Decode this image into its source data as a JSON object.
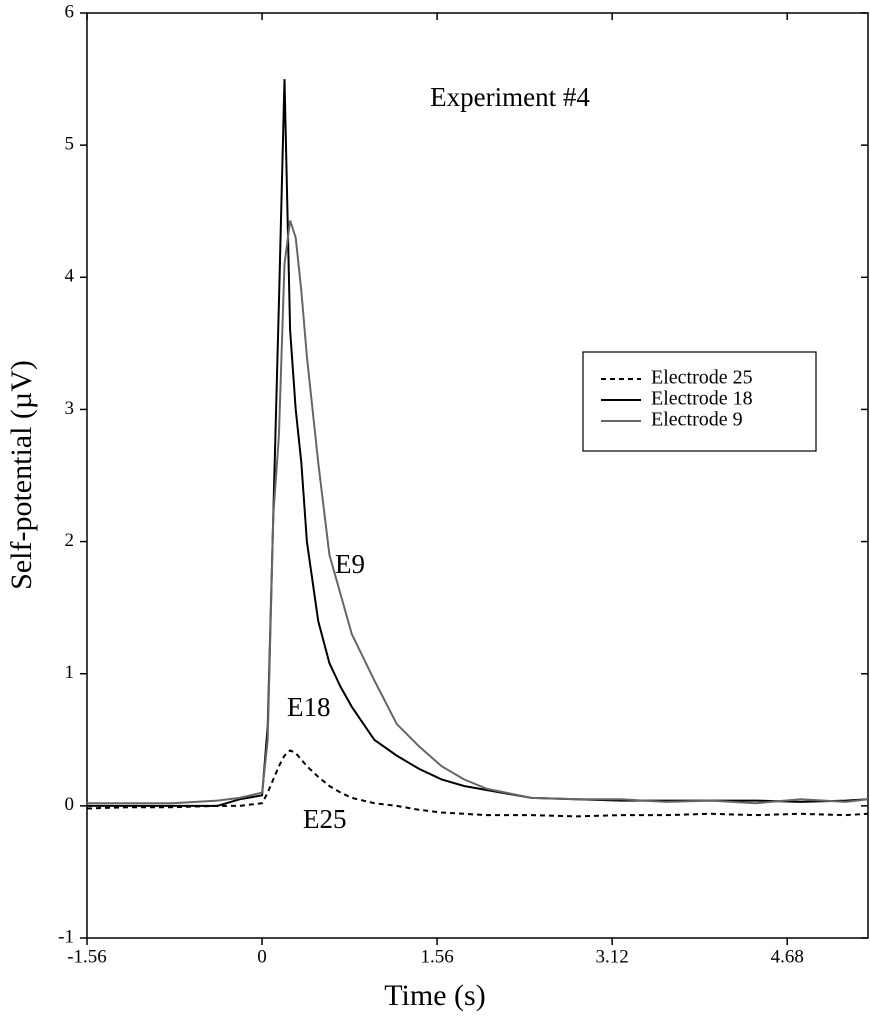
{
  "chart_data": {
    "type": "line",
    "title": "Experiment #4",
    "x_label": "Time (s)",
    "y_label": "Self-potential (µV)",
    "x": [
      -1.56,
      -1.2,
      -0.8,
      -0.4,
      -0.2,
      0,
      0.05,
      0.1,
      0.15,
      0.2,
      0.25,
      0.3,
      0.35,
      0.4,
      0.5,
      0.6,
      0.7,
      0.8,
      1.0,
      1.2,
      1.4,
      1.6,
      1.8,
      2.0,
      2.4,
      2.8,
      3.2,
      3.6,
      4.0,
      4.4,
      4.8,
      5.2,
      5.4
    ],
    "series": [
      {
        "name": "Electrode 25",
        "color": "#000000",
        "dashed": true,
        "values": [
          -0.02,
          -0.01,
          -0.01,
          0.0,
          0.0,
          0.02,
          0.1,
          0.2,
          0.3,
          0.38,
          0.42,
          0.4,
          0.35,
          0.3,
          0.22,
          0.15,
          0.1,
          0.06,
          0.02,
          0.0,
          -0.03,
          -0.05,
          -0.06,
          -0.07,
          -0.07,
          -0.08,
          -0.07,
          -0.07,
          -0.06,
          -0.07,
          -0.06,
          -0.07,
          -0.06
        ]
      },
      {
        "name": "Electrode 18",
        "color": "#000000",
        "dashed": false,
        "values": [
          0.0,
          0.0,
          0.0,
          0.0,
          0.05,
          0.08,
          0.6,
          2.2,
          3.8,
          5.5,
          3.6,
          3.0,
          2.6,
          2.0,
          1.4,
          1.08,
          0.9,
          0.75,
          0.5,
          0.38,
          0.28,
          0.2,
          0.15,
          0.12,
          0.06,
          0.05,
          0.04,
          0.04,
          0.04,
          0.04,
          0.03,
          0.04,
          0.05
        ]
      },
      {
        "name": "Electrode 9",
        "color": "#666666",
        "dashed": false,
        "values": [
          0.02,
          0.02,
          0.02,
          0.04,
          0.06,
          0.1,
          0.5,
          2.2,
          2.8,
          4.1,
          4.43,
          4.3,
          3.9,
          3.4,
          2.6,
          1.9,
          1.6,
          1.3,
          0.95,
          0.62,
          0.45,
          0.3,
          0.2,
          0.13,
          0.06,
          0.05,
          0.05,
          0.03,
          0.04,
          0.02,
          0.05,
          0.03,
          0.05
        ]
      }
    ],
    "annotations": [
      "E9",
      "E18",
      "E25"
    ],
    "xlim": [
      -1.56,
      5.4
    ],
    "xticks": [
      -1.56,
      0,
      1.56,
      3.12,
      4.68
    ],
    "ylim": [
      -1,
      6
    ],
    "yticks": [
      -1,
      0,
      1,
      2,
      3,
      4,
      5,
      6
    ],
    "grid": false,
    "legend": "right"
  }
}
